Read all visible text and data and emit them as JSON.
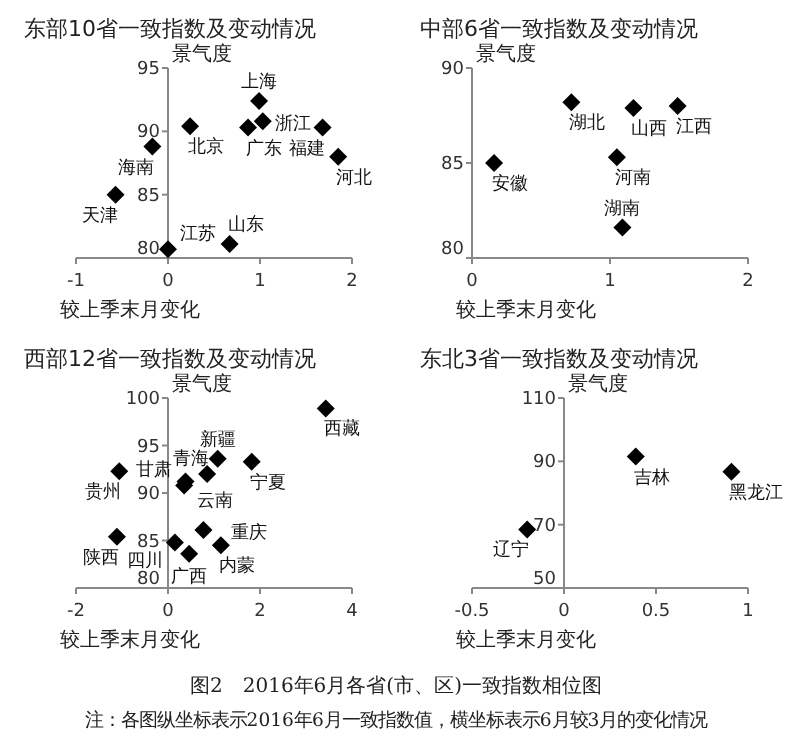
{
  "chart_data": [
    {
      "type": "scatter",
      "title": "东部10省一致指数及变动情况",
      "xlabel": "较上季末月变化",
      "ylabel": "景气度",
      "xlim": [
        -1,
        2
      ],
      "ylim": [
        80,
        95
      ],
      "xticks": [
        -1,
        0,
        1,
        2
      ],
      "yticks": [
        80,
        85,
        90,
        95
      ],
      "marker": "diamond",
      "grid": false,
      "series": [
        {
          "color": "#000000",
          "x": [
            0.99,
            0.24,
            0.87,
            1.03,
            1.68,
            1.85,
            -0.17,
            -0.57,
            0,
            0.67
          ],
          "values": [
            92.4,
            90.4,
            90.3,
            90.8,
            90.3,
            88.0,
            88.8,
            85.0,
            80.7,
            81.1
          ],
          "value_labels": [
            "上海",
            "北京",
            "广东",
            "浙江",
            "福建",
            "河北",
            "海南",
            "天津",
            "江苏",
            "山东"
          ]
        }
      ]
    },
    {
      "type": "scatter",
      "title": "中部6省一致指数及变动情况",
      "xlabel": "较上季末月变化",
      "ylabel": "景气度",
      "xlim": [
        0,
        2
      ],
      "ylim": [
        80,
        90
      ],
      "xticks": [
        0,
        1,
        2
      ],
      "yticks": [
        80,
        85,
        90
      ],
      "marker": "diamond",
      "grid": false,
      "series": [
        {
          "color": "#000000",
          "x": [
            0.72,
            1.17,
            1.49,
            0.16,
            1.05,
            1.09
          ],
          "values": [
            88.2,
            87.9,
            88.0,
            85.0,
            85.3,
            81.6
          ],
          "value_labels": [
            "湖北",
            "山西",
            "江西",
            "安徽",
            "河南",
            "湖南"
          ]
        }
      ]
    },
    {
      "type": "scatter",
      "title": "西部12省一致指数及变动情况",
      "xlabel": "较上季末月变化",
      "ylabel": "景气度",
      "xlim": [
        -2,
        4
      ],
      "ylim": [
        80,
        100
      ],
      "xticks": [
        -2,
        0,
        2,
        4
      ],
      "yticks": [
        80,
        85,
        90,
        95,
        100
      ],
      "marker": "diamond",
      "grid": false,
      "series": [
        {
          "color": "#000000",
          "x": [
            3.43,
            -1.06,
            1.08,
            1.82,
            0.38,
            0.85,
            0.35,
            -1.11,
            0.77,
            0.15,
            1.15,
            0.46
          ],
          "values": [
            98.9,
            92.3,
            93.6,
            93.3,
            91.2,
            92.0,
            90.8,
            85.4,
            86.1,
            84.8,
            84.5,
            83.6
          ],
          "value_labels": [
            "西藏",
            "贵州",
            "新疆",
            "宁夏",
            "云南",
            "青海",
            "甘肃",
            "陕西",
            "重庆",
            "四川",
            "内蒙",
            "广西"
          ]
        }
      ]
    },
    {
      "type": "scatter",
      "title": "东北3省一致指数及变动情况",
      "xlabel": "较上季末月变化",
      "ylabel": "景气度",
      "xlim": [
        -0.5,
        1
      ],
      "ylim": [
        50,
        110
      ],
      "xticks": [
        -0.5,
        0,
        0.5,
        1
      ],
      "yticks": [
        50,
        70,
        90,
        110
      ],
      "marker": "diamond",
      "grid": false,
      "series": [
        {
          "color": "#000000",
          "x": [
            0.39,
            0.91,
            -0.2
          ],
          "values": [
            91.5,
            86.7,
            68.5
          ],
          "value_labels": [
            "吉林",
            "黑龙江",
            "辽宁"
          ]
        }
      ],
      "annotations": [
        "图2　2016年6月各省(市、区)一致指数相位图",
        "注：各图纵坐标表示2016年6月一致指数值，横坐标表示6月较3月的变化情况"
      ]
    }
  ]
}
